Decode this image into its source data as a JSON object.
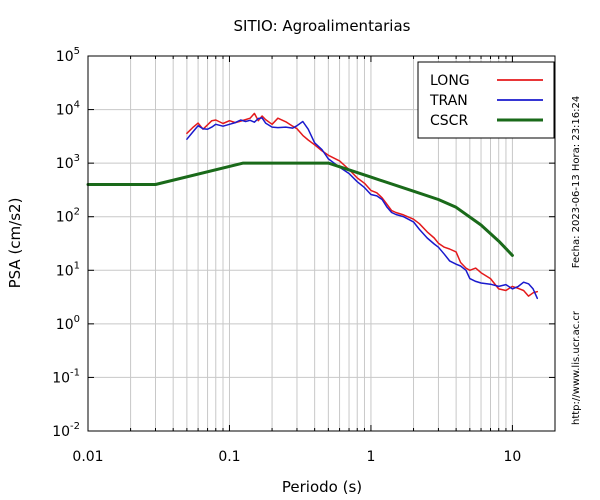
{
  "chart_data": {
    "type": "line",
    "title": "SITIO: Agroalimentarias",
    "xlabel": "Periodo (s)",
    "ylabel": "PSA (cm/s2)",
    "x_scale": "log",
    "y_scale": "log",
    "xlim": [
      0.01,
      20
    ],
    "ylim": [
      0.01,
      100000
    ],
    "grid": true,
    "legend_position": "top-right",
    "x_ticks": [
      {
        "value": 0.01,
        "label": "0.01"
      },
      {
        "value": 0.1,
        "label": "0.1"
      },
      {
        "value": 1,
        "label": "1"
      },
      {
        "value": 10,
        "label": "10"
      }
    ],
    "y_ticks": [
      {
        "value": 0.01,
        "base": "10",
        "exp": "-2"
      },
      {
        "value": 0.1,
        "base": "10",
        "exp": "-1"
      },
      {
        "value": 1,
        "base": "10",
        "exp": "0"
      },
      {
        "value": 10,
        "base": "10",
        "exp": "1"
      },
      {
        "value": 100,
        "base": "10",
        "exp": "2"
      },
      {
        "value": 1000,
        "base": "10",
        "exp": "3"
      },
      {
        "value": 10000,
        "base": "10",
        "exp": "4"
      },
      {
        "value": 100000,
        "base": "10",
        "exp": "5"
      }
    ],
    "side_note_right": "Fecha: 2023-06-13  Hora: 23:16:24",
    "side_note_bottom": "http://www.lis.ucr.ac.cr",
    "series": [
      {
        "name": "LONG",
        "color": "#e41a1c",
        "points": [
          [
            0.05,
            3600
          ],
          [
            0.055,
            4600
          ],
          [
            0.06,
            5600
          ],
          [
            0.065,
            4300
          ],
          [
            0.07,
            5200
          ],
          [
            0.075,
            6200
          ],
          [
            0.08,
            6400
          ],
          [
            0.09,
            5500
          ],
          [
            0.1,
            6200
          ],
          [
            0.11,
            5700
          ],
          [
            0.12,
            6100
          ],
          [
            0.13,
            6500
          ],
          [
            0.14,
            6900
          ],
          [
            0.15,
            8500
          ],
          [
            0.16,
            6200
          ],
          [
            0.17,
            7600
          ],
          [
            0.18,
            6500
          ],
          [
            0.2,
            5300
          ],
          [
            0.22,
            6900
          ],
          [
            0.25,
            5900
          ],
          [
            0.28,
            4900
          ],
          [
            0.3,
            4400
          ],
          [
            0.33,
            3300
          ],
          [
            0.36,
            2700
          ],
          [
            0.4,
            2200
          ],
          [
            0.45,
            1700
          ],
          [
            0.5,
            1400
          ],
          [
            0.6,
            1100
          ],
          [
            0.7,
            760
          ],
          [
            0.8,
            530
          ],
          [
            0.9,
            420
          ],
          [
            1.0,
            310
          ],
          [
            1.1,
            280
          ],
          [
            1.2,
            225
          ],
          [
            1.3,
            170
          ],
          [
            1.4,
            130
          ],
          [
            1.5,
            120
          ],
          [
            1.7,
            108
          ],
          [
            2.0,
            90
          ],
          [
            2.2,
            74
          ],
          [
            2.5,
            52
          ],
          [
            2.8,
            40
          ],
          [
            3.0,
            32
          ],
          [
            3.3,
            27
          ],
          [
            3.6,
            25
          ],
          [
            4.0,
            22
          ],
          [
            4.3,
            14
          ],
          [
            4.7,
            11
          ],
          [
            5.0,
            10
          ],
          [
            5.5,
            11
          ],
          [
            6.0,
            9
          ],
          [
            7.0,
            7
          ],
          [
            8.0,
            4.5
          ],
          [
            9.0,
            4.2
          ],
          [
            10.0,
            5.0
          ],
          [
            11.0,
            4.6
          ],
          [
            12.0,
            4.2
          ],
          [
            13.0,
            3.3
          ],
          [
            14.0,
            3.8
          ],
          [
            15.0,
            4.0
          ]
        ]
      },
      {
        "name": "TRAN",
        "color": "#1a1acd",
        "points": [
          [
            0.05,
            2800
          ],
          [
            0.055,
            3800
          ],
          [
            0.06,
            5000
          ],
          [
            0.065,
            4400
          ],
          [
            0.07,
            4300
          ],
          [
            0.075,
            4700
          ],
          [
            0.08,
            5300
          ],
          [
            0.09,
            4900
          ],
          [
            0.1,
            5300
          ],
          [
            0.11,
            5700
          ],
          [
            0.12,
            6400
          ],
          [
            0.13,
            6000
          ],
          [
            0.14,
            6300
          ],
          [
            0.15,
            5800
          ],
          [
            0.16,
            6800
          ],
          [
            0.17,
            7000
          ],
          [
            0.18,
            5600
          ],
          [
            0.2,
            4700
          ],
          [
            0.22,
            4600
          ],
          [
            0.25,
            4700
          ],
          [
            0.28,
            4500
          ],
          [
            0.3,
            5000
          ],
          [
            0.33,
            6000
          ],
          [
            0.36,
            4300
          ],
          [
            0.4,
            2400
          ],
          [
            0.45,
            1800
          ],
          [
            0.5,
            1200
          ],
          [
            0.6,
            840
          ],
          [
            0.7,
            640
          ],
          [
            0.8,
            450
          ],
          [
            0.9,
            350
          ],
          [
            1.0,
            260
          ],
          [
            1.1,
            245
          ],
          [
            1.2,
            210
          ],
          [
            1.3,
            150
          ],
          [
            1.4,
            120
          ],
          [
            1.5,
            110
          ],
          [
            1.7,
            100
          ],
          [
            2.0,
            80
          ],
          [
            2.2,
            58
          ],
          [
            2.5,
            40
          ],
          [
            2.8,
            31
          ],
          [
            3.0,
            27
          ],
          [
            3.3,
            20
          ],
          [
            3.6,
            15
          ],
          [
            4.0,
            13
          ],
          [
            4.3,
            12
          ],
          [
            4.7,
            10
          ],
          [
            5.0,
            7
          ],
          [
            5.5,
            6.2
          ],
          [
            6.0,
            5.8
          ],
          [
            7.0,
            5.5
          ],
          [
            8.0,
            5.0
          ],
          [
            9.0,
            5.4
          ],
          [
            10.0,
            4.5
          ],
          [
            11.0,
            5.0
          ],
          [
            12.0,
            6.0
          ],
          [
            13.0,
            5.6
          ],
          [
            14.0,
            4.5
          ],
          [
            15.0,
            3.0
          ]
        ]
      },
      {
        "name": "CSCR",
        "color": "#1a6a1a",
        "points": [
          [
            0.01,
            400
          ],
          [
            0.03,
            400
          ],
          [
            0.125,
            1000
          ],
          [
            0.5,
            1000
          ],
          [
            1.0,
            550
          ],
          [
            2.0,
            300
          ],
          [
            3.0,
            210
          ],
          [
            4.0,
            150
          ],
          [
            6.0,
            70
          ],
          [
            8.0,
            35
          ],
          [
            10.0,
            19
          ]
        ]
      }
    ]
  }
}
